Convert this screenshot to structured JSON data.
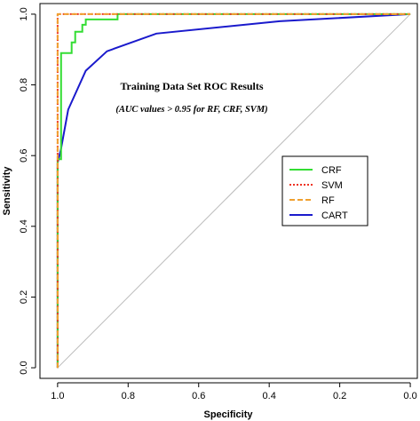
{
  "chart_data": {
    "type": "line",
    "xlabel": "Specificity",
    "ylabel": "Sensitivity",
    "xlim": [
      1.05,
      -0.02
    ],
    "ylim": [
      -0.03,
      1.03
    ],
    "x_reversed": true,
    "x_ticks": [
      "1.0",
      "0.8",
      "0.6",
      "0.4",
      "0.2",
      "0.0"
    ],
    "x_tick_values": [
      1.0,
      0.8,
      0.6,
      0.4,
      0.2,
      0.0
    ],
    "y_ticks": [
      "0.0",
      "0.2",
      "0.4",
      "0.6",
      "0.8",
      "1.0"
    ],
    "y_tick_values": [
      0.0,
      0.2,
      0.4,
      0.6,
      0.8,
      1.0
    ],
    "grid": false,
    "legend_position": "center-right",
    "annotations": [
      "Training Data Set ROC Results",
      "(AUC values > 0.95 for RF, CRF, SVM)"
    ],
    "reference_line": {
      "x": [
        1.0,
        0.0
      ],
      "y": [
        0.0,
        1.0
      ],
      "color": "#bbbbbb"
    },
    "series": [
      {
        "name": "CRF",
        "color": "#33dd33",
        "style": "solid",
        "x": [
          1.0,
          1.0,
          0.99,
          0.99,
          0.96,
          0.96,
          0.95,
          0.95,
          0.93,
          0.93,
          0.92,
          0.92,
          0.83,
          0.83,
          0.0
        ],
        "y": [
          0.0,
          0.59,
          0.59,
          0.89,
          0.89,
          0.92,
          0.92,
          0.95,
          0.95,
          0.97,
          0.97,
          0.985,
          0.985,
          1.0,
          1.0
        ]
      },
      {
        "name": "SVM",
        "color": "#ee3322",
        "style": "dotted",
        "x": [
          1.0,
          1.0,
          0.0
        ],
        "y": [
          0.0,
          1.0,
          1.0
        ]
      },
      {
        "name": "RF",
        "color": "#f0a030",
        "style": "dashed",
        "x": [
          1.0,
          1.0,
          0.0
        ],
        "y": [
          0.0,
          1.0,
          1.0
        ]
      },
      {
        "name": "CART",
        "color": "#1a1acc",
        "style": "solid",
        "x": [
          1.0,
          1.0,
          0.99,
          0.97,
          0.92,
          0.86,
          0.72,
          0.37,
          0.0
        ],
        "y": [
          0.0,
          0.58,
          0.62,
          0.73,
          0.84,
          0.895,
          0.945,
          0.98,
          1.0
        ]
      }
    ]
  }
}
